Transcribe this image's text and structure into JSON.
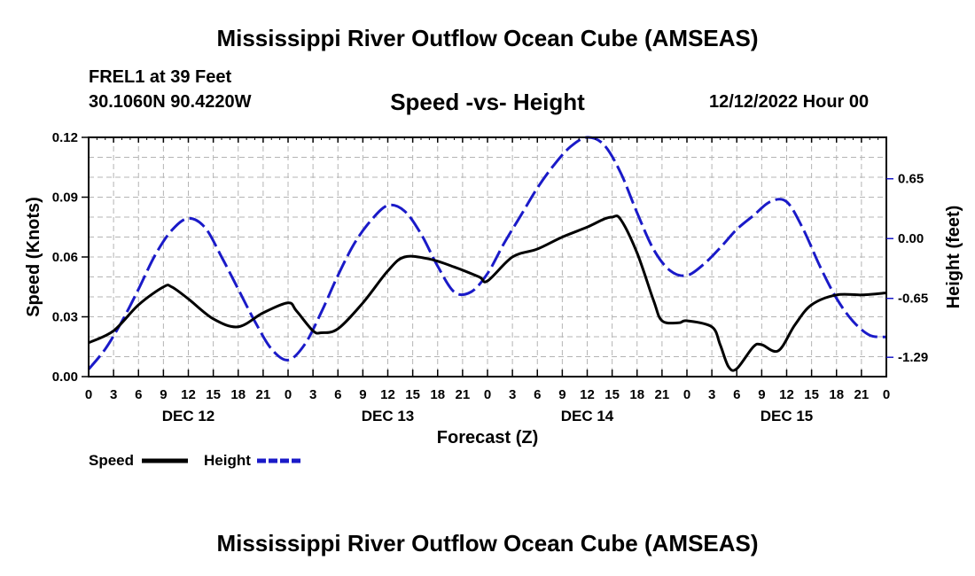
{
  "title": "Mississippi River Outflow Ocean Cube (AMSEAS)",
  "bottom_title": "Mississippi River Outflow Ocean Cube (AMSEAS)",
  "station": {
    "name": "FREL1 at 39 Feet",
    "coords": "30.1060N  90.4220W"
  },
  "date_label": "12/12/2022 Hour 00",
  "colors": {
    "speed": "#000000",
    "height": "#1a1ac8",
    "grid": "#b4b4b4"
  },
  "chart_data": {
    "type": "line",
    "title": "Speed -vs- Height",
    "xlabel": "Forecast (Z)",
    "ylabel": "Speed (Knots)",
    "y2label": "Height (feet)",
    "xlim": [
      0,
      96
    ],
    "ylim": [
      0,
      0.12
    ],
    "y2lim": [
      -1.5,
      1.1
    ],
    "x_tick_step_hours": 3,
    "x_tick_labels": [
      "0",
      "3",
      "6",
      "9",
      "12",
      "15",
      "18",
      "21",
      "0",
      "3",
      "6",
      "9",
      "12",
      "15",
      "18",
      "21",
      "0",
      "3",
      "6",
      "9",
      "12",
      "15",
      "18",
      "21",
      "0",
      "3",
      "6",
      "9",
      "12",
      "15",
      "18",
      "21",
      "0"
    ],
    "day_labels": [
      {
        "label": "DEC 12",
        "x": 12
      },
      {
        "label": "DEC 13",
        "x": 36
      },
      {
        "label": "DEC 14",
        "x": 60
      },
      {
        "label": "DEC 15",
        "x": 84
      }
    ],
    "y_ticks": [
      "0.00",
      "0.03",
      "0.06",
      "0.09",
      "0.12"
    ],
    "y_tick_values": [
      0,
      0.03,
      0.06,
      0.09,
      0.12
    ],
    "y2_ticks": [
      "-1.29",
      "-0.65",
      "0.00",
      "0.65"
    ],
    "y2_tick_values": [
      -1.29,
      -0.65,
      0.0,
      0.65
    ],
    "legend": [
      {
        "label": "Speed",
        "style": "solid"
      },
      {
        "label": "Height",
        "style": "dashed"
      }
    ],
    "series": [
      {
        "name": "Speed",
        "axis": "left",
        "style": "solid",
        "x": [
          0,
          3,
          6,
          9,
          10,
          12,
          15,
          18,
          21,
          24,
          25,
          27,
          28,
          30,
          33,
          36,
          38,
          41,
          44,
          47,
          48,
          51,
          54,
          57,
          60,
          62,
          63,
          64,
          66,
          68,
          69,
          71,
          72,
          75,
          76,
          77,
          78,
          80,
          81,
          83,
          85,
          87,
          90,
          93,
          96
        ],
        "values": [
          0.017,
          0.023,
          0.036,
          0.045,
          0.045,
          0.039,
          0.029,
          0.025,
          0.032,
          0.037,
          0.033,
          0.023,
          0.022,
          0.024,
          0.037,
          0.053,
          0.06,
          0.059,
          0.055,
          0.05,
          0.048,
          0.06,
          0.064,
          0.07,
          0.075,
          0.079,
          0.08,
          0.079,
          0.062,
          0.038,
          0.028,
          0.027,
          0.028,
          0.025,
          0.016,
          0.005,
          0.004,
          0.015,
          0.016,
          0.013,
          0.026,
          0.036,
          0.041,
          0.041,
          0.042
        ]
      },
      {
        "name": "Height",
        "axis": "right",
        "style": "dashed",
        "x": [
          0,
          2,
          4,
          6,
          8,
          10,
          12,
          14,
          16,
          18,
          20,
          22,
          24,
          26,
          28,
          30,
          32,
          34,
          36,
          38,
          40,
          42,
          44,
          46,
          48,
          50,
          52,
          54,
          56,
          58,
          60,
          62,
          64,
          66,
          68,
          70,
          72,
          74,
          76,
          78,
          80,
          82,
          84,
          86,
          88,
          90,
          92,
          94,
          96
        ],
        "values": [
          -1.42,
          -1.2,
          -0.9,
          -0.55,
          -0.18,
          0.09,
          0.22,
          0.12,
          -0.2,
          -0.55,
          -0.9,
          -1.2,
          -1.32,
          -1.15,
          -0.8,
          -0.4,
          -0.05,
          0.2,
          0.36,
          0.3,
          0.05,
          -0.3,
          -0.58,
          -0.58,
          -0.38,
          -0.05,
          0.25,
          0.55,
          0.8,
          1.0,
          1.1,
          1.02,
          0.72,
          0.28,
          -0.12,
          -0.35,
          -0.4,
          -0.28,
          -0.1,
          0.1,
          0.25,
          0.4,
          0.4,
          0.1,
          -0.3,
          -0.65,
          -0.9,
          -1.05,
          -1.07
        ]
      }
    ]
  }
}
